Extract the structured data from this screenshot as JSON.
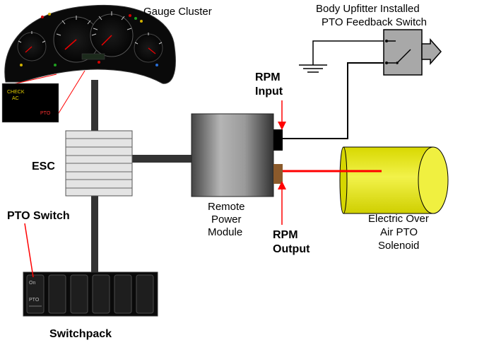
{
  "labels": {
    "gauge_cluster": "Gauge Cluster",
    "body_upfitter_line1": "Body Upfitter Installed",
    "body_upfitter_line2": "PTO Feedback Switch",
    "rpm_input_line1": "RPM",
    "rpm_input_line2": "Input",
    "esc": "ESC",
    "pto_switch": "PTO Switch",
    "remote_line1": "Remote",
    "remote_line2": "Power",
    "remote_line3": "Module",
    "rpm_output_line1": "RPM",
    "rpm_output_line2": "Output",
    "solenoid_line1": "Electric Over",
    "solenoid_line2": "Air PTO",
    "solenoid_line3": "Solenoid",
    "switchpack": "Switchpack"
  },
  "inset": {
    "check": "CHECK",
    "ac": "AC",
    "pto": "PTO"
  },
  "switch_labels": {
    "on": "On",
    "pto": "PTO"
  },
  "colors": {
    "signal_red": "#ff0000",
    "bus_gray": "#333333",
    "solenoid_yellow": "#e6e600",
    "connector_brown": "#8b5a2b"
  }
}
